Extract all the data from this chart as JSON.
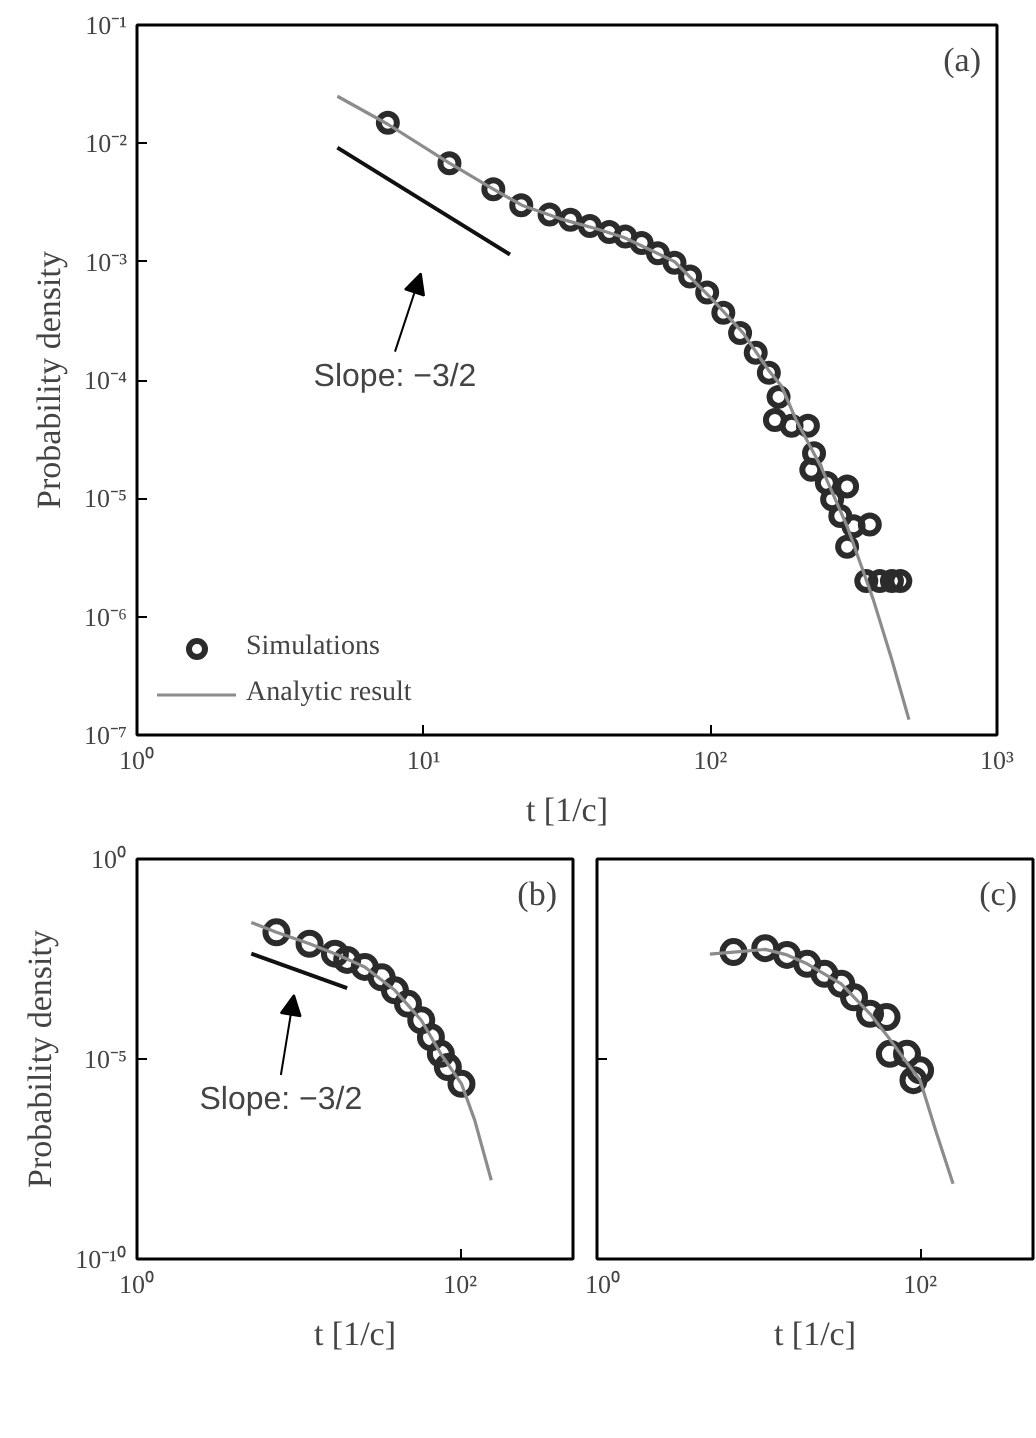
{
  "chart_data": [
    {
      "type": "scatter",
      "xlabel": "t [1/c]",
      "ylabel": "Probability density",
      "log": "xy",
      "grid": false,
      "legend": "bottom left",
      "xlim": [
        1,
        1000
      ],
      "ylim": [
        1e-07,
        0.1
      ],
      "xticks": [
        {
          "value": 1,
          "label": "10⁰"
        },
        {
          "value": 10,
          "label": "10¹"
        },
        {
          "value": 100,
          "label": "10²"
        },
        {
          "value": 1000,
          "label": "10³"
        }
      ],
      "yticks": [
        {
          "value": 1e-07,
          "label": "10⁻⁷"
        },
        {
          "value": 1e-06,
          "label": "10⁻⁶"
        },
        {
          "value": 1e-05,
          "label": "10⁻⁵"
        },
        {
          "value": 0.0001,
          "label": "10⁻⁴"
        },
        {
          "value": 0.001,
          "label": "10⁻³"
        },
        {
          "value": 0.01,
          "label": "10⁻²"
        },
        {
          "value": 0.1,
          "label": "10⁻¹"
        }
      ],
      "annotations": [
        "(a)",
        "Slope: −3/2"
      ],
      "series": [
        {
          "name": "Simulations",
          "marker": "circle",
          "color": "#2b2b2b",
          "x": [
            7.5,
            12.3,
            17.5,
            21.9,
            27.5,
            32.5,
            38,
            44.4,
            50.5,
            57.6,
            65.6,
            75,
            85,
            97.5,
            111,
            127,
            144,
            160,
            173,
            168,
            192,
            219,
            230,
            225,
            255,
            266,
            300,
            284,
            316,
            360,
            300,
            350,
            390,
            430,
            460
          ],
          "values": [
            0.0149,
            0.0068,
            0.0041,
            0.003,
            0.0025,
            0.00226,
            0.002,
            0.00178,
            0.00163,
            0.00144,
            0.00118,
            0.00098,
            0.00075,
            0.00055,
            0.00037,
            0.00025,
            0.00017,
            0.000115,
            7.2e-05,
            4.6e-05,
            4.1e-05,
            4.1e-05,
            2.4e-05,
            1.74e-05,
            1.35e-05,
            9.8e-06,
            1.26e-05,
            7.1e-06,
            5.8e-06,
            6e-06,
            3.9e-06,
            2e-06,
            2e-06,
            2e-06,
            2e-06
          ]
        },
        {
          "name": "Analytic result",
          "type": "line",
          "color": "#8c8c8c",
          "x": [
            5,
            7.5,
            12.3,
            17.5,
            22,
            30,
            40,
            50,
            60,
            75,
            100,
            130,
            160,
            177,
            200,
            243,
            300,
            370,
            430,
            493
          ],
          "values": [
            0.025,
            0.0145,
            0.0068,
            0.0041,
            0.003,
            0.0023,
            0.0019,
            0.0016,
            0.0013,
            0.001,
            0.0005,
            0.00025,
            0.00012,
            8.9e-05,
            4.5e-05,
            1.86e-05,
            5.8e-06,
            1.4e-06,
            4.3e-07,
            1.35e-07
          ]
        },
        {
          "type": "line",
          "color": "#111111",
          "x": [
            5,
            20
          ],
          "values": [
            0.0092,
            0.00115
          ]
        }
      ]
    },
    {
      "type": "scatter",
      "xlabel": "t [1/c]",
      "ylabel": "Probability density",
      "log": "xy",
      "grid": false,
      "xlim": [
        1,
        500
      ],
      "ylim": [
        1e-10,
        1
      ],
      "xticks": [
        {
          "value": 1,
          "label": "10⁰"
        },
        {
          "value": 100,
          "label": "10²"
        }
      ],
      "yticks": [
        {
          "value": 1e-10,
          "label": "10⁻¹⁰"
        },
        {
          "value": 1e-05,
          "label": "10⁻⁵"
        },
        {
          "value": 1,
          "label": "10⁰"
        }
      ],
      "annotations": [
        "(b)",
        "Slope: −3/2"
      ],
      "series": [
        {
          "marker": "circle",
          "color": "#2b2b2b",
          "x": [
            7.3,
            11.7,
            16.8,
            20,
            25.7,
            32.7,
            39.5,
            47.6,
            57.5,
            66,
            76,
            84,
            102
          ],
          "values": [
            0.0147,
            0.0076,
            0.0043,
            0.003,
            0.002,
            0.0011,
            0.00052,
            0.00024,
            9.3e-05,
            3.5e-05,
            1.35e-05,
            6.3e-06,
            2.4e-06
          ]
        },
        {
          "type": "line",
          "color": "#8c8c8c",
          "x": [
            5.1,
            7.3,
            11.7,
            16.8,
            25.7,
            39.5,
            57.5,
            76,
            102,
            123,
            156
          ],
          "values": [
            0.026,
            0.0147,
            0.0076,
            0.0043,
            0.002,
            0.00052,
            9.3e-05,
            1.35e-05,
            2.4e-06,
            3e-07,
            9.3e-09
          ]
        },
        {
          "type": "line",
          "color": "#111111",
          "x": [
            5.1,
            20
          ],
          "values": [
            0.0043,
            0.00059
          ]
        }
      ]
    },
    {
      "type": "scatter",
      "xlabel": "t [1/c]",
      "log": "xy",
      "grid": false,
      "tick_labels": "x",
      "xlim": [
        1,
        500
      ],
      "ylim": [
        1e-10,
        1
      ],
      "xticks": [
        {
          "value": 1,
          "label": "10⁰"
        },
        {
          "value": 100,
          "label": "10²"
        }
      ],
      "yticks": [
        {
          "value": 1e-10,
          "label": null
        },
        {
          "value": 1e-05,
          "label": null
        },
        {
          "value": 1,
          "label": null
        }
      ],
      "annotations": [
        "(c)"
      ],
      "series": [
        {
          "marker": "circle",
          "color": "#2b2b2b",
          "x": [
            7,
            11,
            15,
            20,
            25.6,
            32.5,
            39,
            49,
            62,
            65,
            83,
            91,
            100
          ],
          "values": [
            0.0047,
            0.0059,
            0.004,
            0.0024,
            0.00135,
            0.00076,
            0.00035,
            0.000135,
            0.000112,
            1.35e-05,
            1.35e-05,
            2.95e-06,
            5.2e-06
          ]
        },
        {
          "type": "line",
          "color": "#8c8c8c",
          "x": [
            5,
            7,
            11,
            15,
            20,
            32.5,
            49,
            62,
            83,
            100,
            125,
            160
          ],
          "values": [
            0.0042,
            0.0047,
            0.0055,
            0.004,
            0.0024,
            0.00076,
            0.000135,
            4e-05,
            8e-06,
            2.95e-06,
            1.6e-07,
            7.6e-09
          ]
        }
      ]
    }
  ]
}
